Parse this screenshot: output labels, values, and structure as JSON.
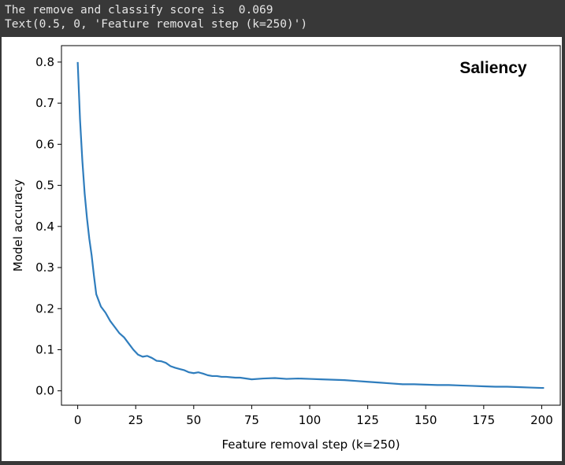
{
  "console": {
    "line1": "The remove and classify score is  0.069",
    "line2": "Text(0.5, 0, 'Feature removal step (k=250)')"
  },
  "chart_data": {
    "type": "line",
    "title": "",
    "annotation": "Saliency",
    "xlabel": "Feature removal step (k=250)",
    "ylabel": "Model accuracy",
    "xlim": [
      -7,
      208
    ],
    "ylim": [
      -0.035,
      0.84
    ],
    "xticks": [
      0,
      25,
      50,
      75,
      100,
      125,
      150,
      175,
      200
    ],
    "yticks": [
      0.0,
      0.1,
      0.2,
      0.3,
      0.4,
      0.5,
      0.6,
      0.7,
      0.8
    ],
    "grid": false,
    "line_color": "#2f7dbd",
    "series": [
      {
        "x": [
          0,
          1,
          2,
          3,
          4,
          5,
          6,
          7,
          8,
          9,
          10,
          12,
          14,
          16,
          18,
          20,
          22,
          24,
          26,
          28,
          30,
          32,
          34,
          36,
          38,
          40,
          42,
          44,
          46,
          48,
          50,
          52,
          54,
          56,
          58,
          60,
          62,
          64,
          66,
          68,
          70,
          75,
          80,
          85,
          90,
          95,
          100,
          105,
          110,
          115,
          120,
          125,
          130,
          135,
          140,
          145,
          150,
          155,
          160,
          165,
          170,
          175,
          180,
          185,
          190,
          195,
          200,
          201
        ],
        "y": [
          0.8,
          0.66,
          0.56,
          0.48,
          0.42,
          0.37,
          0.33,
          0.28,
          0.235,
          0.22,
          0.205,
          0.19,
          0.17,
          0.155,
          0.14,
          0.13,
          0.115,
          0.1,
          0.088,
          0.083,
          0.085,
          0.08,
          0.073,
          0.072,
          0.068,
          0.06,
          0.056,
          0.053,
          0.05,
          0.045,
          0.043,
          0.045,
          0.042,
          0.038,
          0.036,
          0.036,
          0.034,
          0.034,
          0.033,
          0.032,
          0.032,
          0.028,
          0.03,
          0.031,
          0.029,
          0.03,
          0.029,
          0.028,
          0.027,
          0.026,
          0.024,
          0.022,
          0.02,
          0.018,
          0.016,
          0.016,
          0.015,
          0.014,
          0.014,
          0.013,
          0.012,
          0.011,
          0.01,
          0.01,
          0.009,
          0.008,
          0.007,
          0.007
        ]
      }
    ]
  }
}
